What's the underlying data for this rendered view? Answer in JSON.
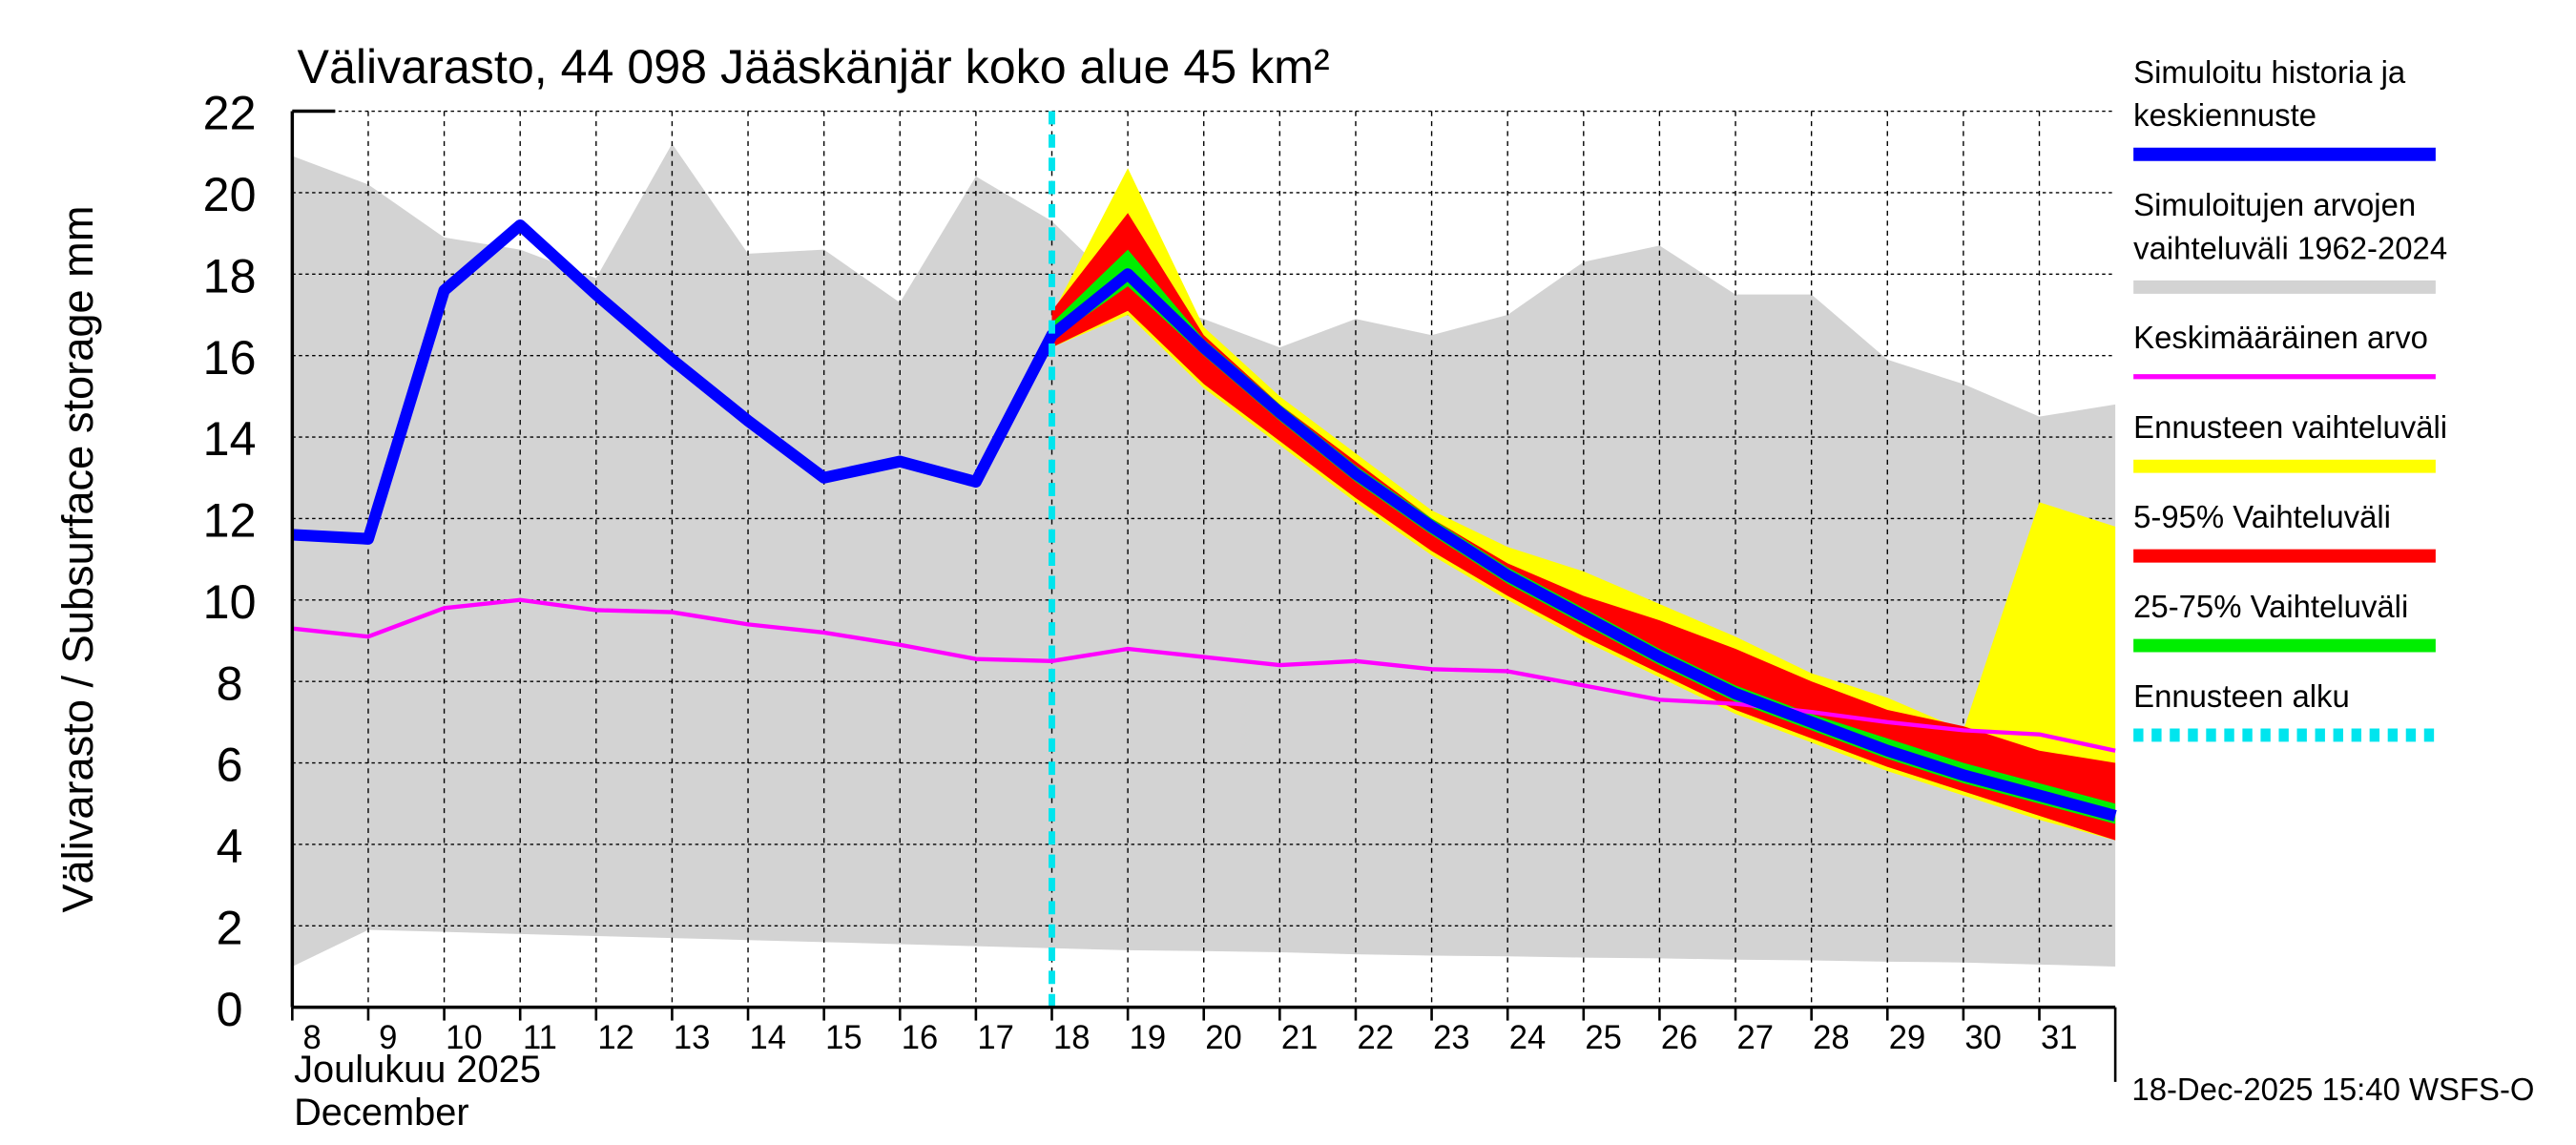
{
  "chart_data": {
    "type": "area",
    "title": "Välivarasto, 44 098 Jääskänjär koko alue 45 km²",
    "ylabel": "Välivarasto / Subsurface storage  mm",
    "xlabel_line1": "Joulukuu  2025",
    "xlabel_line2": "December",
    "footer": "18-Dec-2025 15:40 WSFS-O",
    "ylim": [
      0,
      22
    ],
    "yticks": [
      0,
      2,
      4,
      6,
      8,
      10,
      12,
      14,
      16,
      18,
      20,
      22
    ],
    "xlim": [
      8,
      32
    ],
    "xtick_labels": [
      "8",
      "9",
      "10",
      "11",
      "12",
      "13",
      "14",
      "15",
      "16",
      "17",
      "18",
      "19",
      "20",
      "21",
      "22",
      "23",
      "24",
      "25",
      "26",
      "27",
      "28",
      "29",
      "30",
      "31"
    ],
    "forecast_start_day": 18,
    "grid": true,
    "legend_placement": "right",
    "legend": [
      {
        "label_line1": "Simuloitu historia ja",
        "label_line2": "keskiennuste",
        "color": "#0000ff"
      },
      {
        "label_line1": "Simuloitujen arvojen",
        "label_line2": "vaihteluväli 1962-2024",
        "color": "#d3d3d3"
      },
      {
        "label_line1": "Keskimääräinen arvo",
        "label_line2": "",
        "color": "#ff00ff"
      },
      {
        "label_line1": "Ennusteen vaihteluväli",
        "label_line2": "",
        "color": "#ffff00"
      },
      {
        "label_line1": "5-95% Vaihteluväli",
        "label_line2": "",
        "color": "#ff0000"
      },
      {
        "label_line1": "25-75% Vaihteluväli",
        "label_line2": "",
        "color": "#00ee00"
      },
      {
        "label_line1": "Ennusteen alku",
        "label_line2": "",
        "color": "#00e5ee"
      }
    ],
    "x_days": [
      8,
      9,
      10,
      11,
      12,
      13,
      14,
      15,
      16,
      17,
      18,
      19,
      20,
      21,
      22,
      23,
      24,
      25,
      26,
      27,
      28,
      29,
      30,
      31,
      32
    ],
    "historical_range": {
      "upper": [
        20.9,
        20.2,
        18.9,
        18.6,
        17.9,
        21.2,
        18.5,
        18.6,
        17.3,
        20.4,
        19.3,
        17.5,
        16.9,
        16.2,
        16.9,
        16.5,
        17.0,
        18.3,
        18.7,
        17.5,
        17.5,
        15.9,
        15.3,
        14.5,
        14.8
      ],
      "lower": [
        1.0,
        1.9,
        1.85,
        1.8,
        1.75,
        1.7,
        1.65,
        1.6,
        1.55,
        1.5,
        1.45,
        1.4,
        1.38,
        1.35,
        1.3,
        1.27,
        1.25,
        1.22,
        1.2,
        1.17,
        1.15,
        1.12,
        1.1,
        1.05,
        1.0
      ]
    },
    "mean": [
      9.3,
      9.1,
      9.8,
      10.0,
      9.75,
      9.7,
      9.4,
      9.2,
      8.9,
      8.55,
      8.5,
      8.8,
      8.6,
      8.4,
      8.5,
      8.3,
      8.25,
      7.9,
      7.55,
      7.45,
      7.25,
      7.0,
      6.8,
      6.7,
      6.3
    ],
    "simulated_median": [
      11.6,
      11.5,
      17.6,
      19.2,
      17.5,
      15.9,
      14.4,
      13.0,
      13.4,
      12.9,
      16.5,
      18.0,
      16.2,
      14.6,
      13.1,
      11.8,
      10.6,
      9.6,
      8.6,
      7.7,
      7.0,
      6.3,
      5.7,
      5.2,
      4.7
    ],
    "forecast_days": [
      18,
      19,
      20,
      21,
      22,
      23,
      24,
      25,
      26,
      27,
      28,
      29,
      30,
      31,
      32
    ],
    "forecast_range": {
      "upper": [
        17.0,
        20.6,
        16.7,
        15.0,
        13.6,
        12.2,
        11.3,
        10.7,
        9.9,
        9.1,
        8.2,
        7.6,
        6.8,
        12.4,
        11.8
      ],
      "lower": [
        16.2,
        17.0,
        15.2,
        13.8,
        12.4,
        11.1,
        10.0,
        9.0,
        8.1,
        7.2,
        6.5,
        5.8,
        5.2,
        4.6,
        4.1
      ]
    },
    "p5_95": {
      "upper": [
        17.1,
        19.5,
        16.5,
        14.8,
        13.4,
        12.0,
        10.9,
        10.1,
        9.5,
        8.8,
        8.0,
        7.3,
        6.9,
        6.3,
        6.0
      ],
      "lower": [
        16.2,
        17.1,
        15.3,
        13.9,
        12.5,
        11.2,
        10.1,
        9.1,
        8.2,
        7.3,
        6.6,
        5.9,
        5.3,
        4.7,
        4.1
      ]
    },
    "p25_75": {
      "upper": [
        16.8,
        18.6,
        16.4,
        14.8,
        13.3,
        12.0,
        10.8,
        9.8,
        8.8,
        7.9,
        7.2,
        6.6,
        6.0,
        5.5,
        5.0
      ],
      "lower": [
        16.4,
        17.7,
        16.0,
        14.4,
        12.9,
        11.6,
        10.4,
        9.4,
        8.4,
        7.5,
        6.8,
        6.1,
        5.5,
        5.0,
        4.5
      ]
    }
  }
}
